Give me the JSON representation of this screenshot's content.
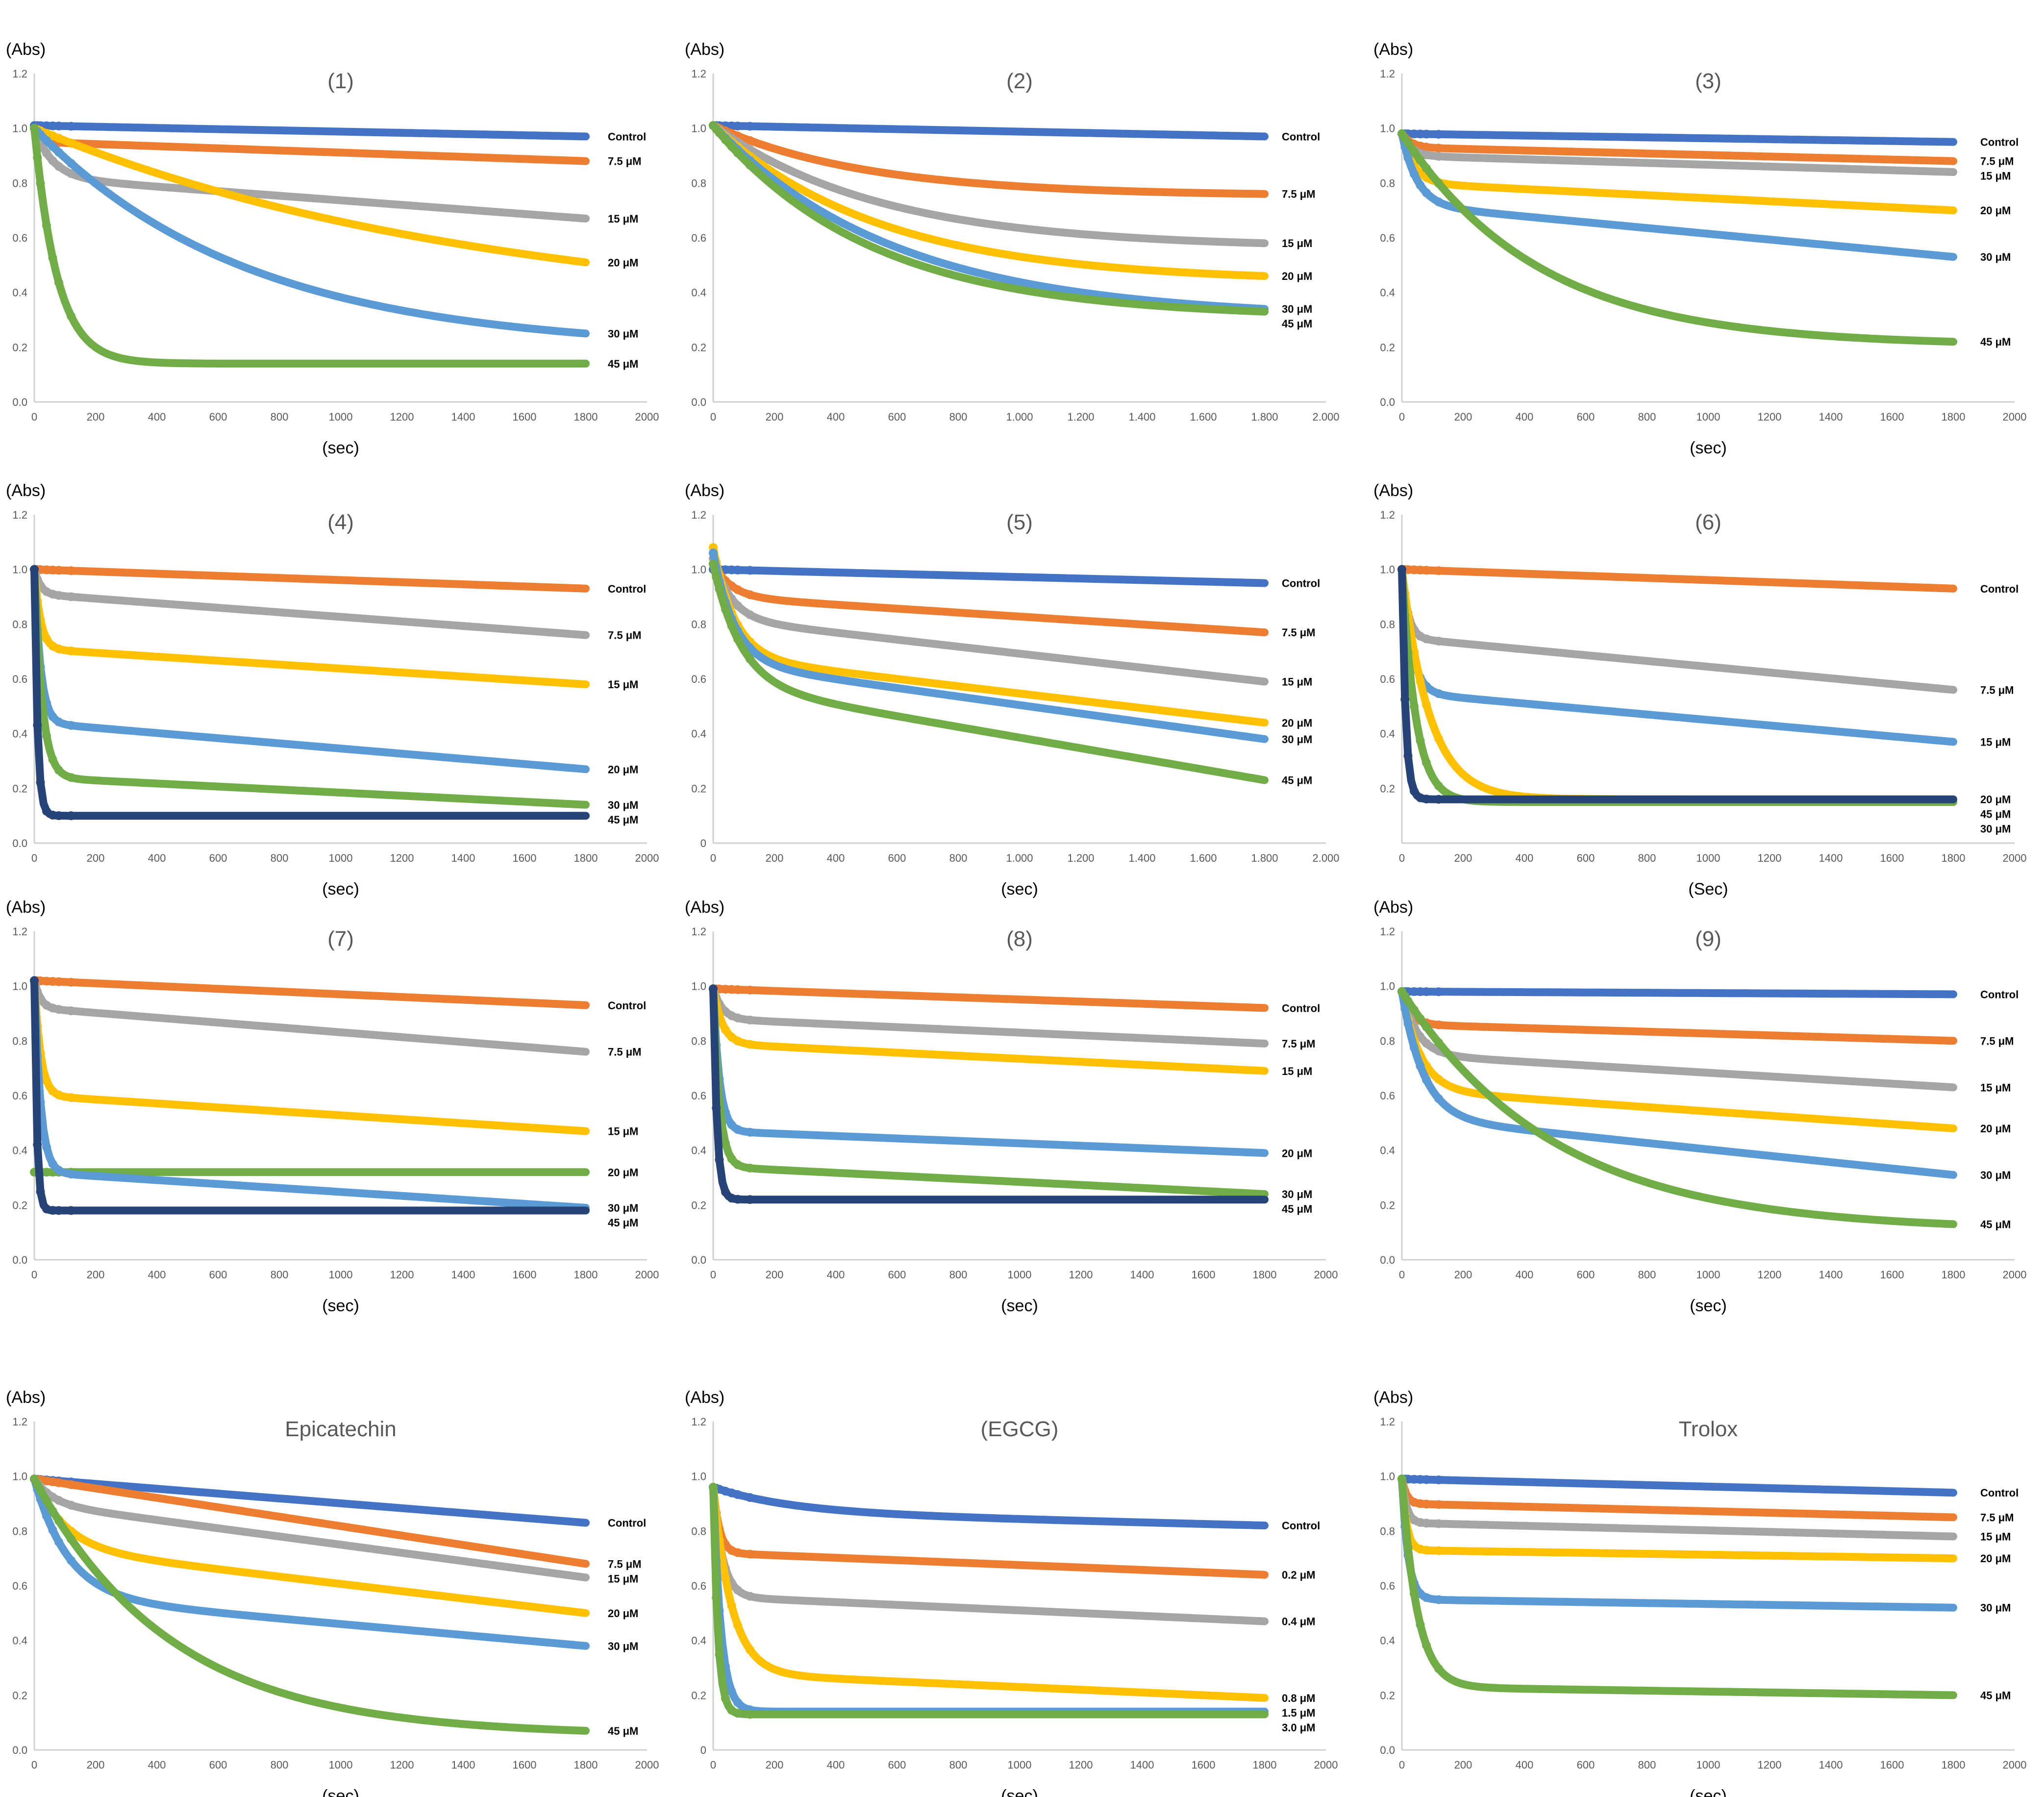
{
  "colors": {
    "blue": "#4472C4",
    "orange": "#ED7D31",
    "gray": "#A5A5A5",
    "yellow": "#FFC000",
    "lightblue": "#5B9BD5",
    "green": "#70AD47",
    "navy": "#264478"
  },
  "chart_data": [
    {
      "type": "scatter",
      "title": "(1)",
      "ylabel": "(Abs)",
      "xlabel": "(sec)",
      "xlim": [
        0,
        2000
      ],
      "ylim": [
        0,
        1.2
      ],
      "xticks": [
        "0",
        "200",
        "400",
        "600",
        "800",
        "1000",
        "1200",
        "1400",
        "1600",
        "1800",
        "2000"
      ],
      "yticks": [
        "0.0",
        "0.2",
        "0.4",
        "0.6",
        "0.8",
        "1.0",
        "1.2"
      ],
      "series": [
        {
          "name": "Control",
          "color": "blue",
          "start": 1.01,
          "end": 0.97,
          "kind": "lin"
        },
        {
          "name": "7.5 μM",
          "color": "orange",
          "start": 1.0,
          "end": 0.88,
          "kind": "drop",
          "drop": 0.95,
          "tau": 20
        },
        {
          "name": "15 μM",
          "color": "gray",
          "start": 1.0,
          "end": 0.67,
          "kind": "drop",
          "drop": 0.82,
          "tau": 60
        },
        {
          "name": "20 μM",
          "color": "yellow",
          "start": 1.0,
          "end": 0.51,
          "kind": "exp",
          "tau": 1500
        },
        {
          "name": "30 μM",
          "color": "lightblue",
          "start": 1.0,
          "end": 0.25,
          "kind": "exp",
          "tau": 700
        },
        {
          "name": "45 μM",
          "color": "green",
          "start": 1.0,
          "end": 0.14,
          "kind": "exp",
          "tau": 75
        }
      ]
    },
    {
      "type": "scatter",
      "title": "(2)",
      "ylabel": "(Abs)",
      "xlabel": "",
      "xlim": [
        0,
        2000
      ],
      "ylim": [
        0,
        1.2
      ],
      "xticks": [
        "0",
        "200",
        "400",
        "600",
        "800",
        "1.000",
        "1.200",
        "1.400",
        "1.600",
        "1.800",
        "2.000"
      ],
      "yticks": [
        "0.0",
        "0.2",
        "0.4",
        "0.6",
        "0.8",
        "1.0",
        "1.2"
      ],
      "series": [
        {
          "name": "Control",
          "color": "blue",
          "start": 1.01,
          "end": 0.97,
          "kind": "lin"
        },
        {
          "name": "7.5 μM",
          "color": "orange",
          "start": 1.01,
          "end": 0.76,
          "kind": "exp",
          "tau": 500
        },
        {
          "name": "15 μM",
          "color": "gray",
          "start": 1.01,
          "end": 0.58,
          "kind": "exp",
          "tau": 550
        },
        {
          "name": "20 μM",
          "color": "yellow",
          "start": 1.01,
          "end": 0.46,
          "kind": "exp",
          "tau": 550
        },
        {
          "name": "30 μM",
          "color": "lightblue",
          "start": 1.01,
          "end": 0.34,
          "kind": "exp",
          "tau": 600
        },
        {
          "name": "45 μM",
          "color": "green",
          "start": 1.01,
          "end": 0.33,
          "kind": "exp",
          "tau": 520
        }
      ]
    },
    {
      "type": "scatter",
      "title": "(3)",
      "ylabel": "(Abs)",
      "xlabel": "(sec)",
      "xlim": [
        0,
        2000
      ],
      "ylim": [
        0,
        1.2
      ],
      "xticks": [
        "0",
        "200",
        "400",
        "600",
        "800",
        "1000",
        "1200",
        "1400",
        "1600",
        "1800",
        "2000"
      ],
      "yticks": [
        "0.0",
        "0.2",
        "0.4",
        "0.6",
        "0.8",
        "1.0",
        "1.2"
      ],
      "series": [
        {
          "name": "Control",
          "color": "blue",
          "start": 0.98,
          "end": 0.95,
          "kind": "lin"
        },
        {
          "name": "7.5 μM",
          "color": "orange",
          "start": 0.98,
          "end": 0.88,
          "kind": "drop",
          "drop": 0.93,
          "tau": 30
        },
        {
          "name": "15 μM",
          "color": "gray",
          "start": 0.98,
          "end": 0.84,
          "kind": "drop",
          "drop": 0.9,
          "tau": 30
        },
        {
          "name": "20 μM",
          "color": "yellow",
          "start": 0.98,
          "end": 0.7,
          "kind": "drop",
          "drop": 0.8,
          "tau": 40
        },
        {
          "name": "30 μM",
          "color": "lightblue",
          "start": 0.98,
          "end": 0.53,
          "kind": "drop",
          "drop": 0.72,
          "tau": 50
        },
        {
          "name": "45 μM",
          "color": "green",
          "start": 0.98,
          "end": 0.22,
          "kind": "exp",
          "tau": 450
        }
      ]
    },
    {
      "type": "scatter",
      "title": "(4)",
      "ylabel": "(Abs)",
      "xlabel": "(sec)",
      "xlim": [
        0,
        2000
      ],
      "ylim": [
        0,
        1.2
      ],
      "xticks": [
        "0",
        "200",
        "400",
        "600",
        "800",
        "1000",
        "1200",
        "1400",
        "1600",
        "1800",
        "2000"
      ],
      "yticks": [
        "0.0",
        "0.2",
        "0.4",
        "0.6",
        "0.8",
        "1.0",
        "1.2"
      ],
      "series": [
        {
          "name": "Control",
          "color": "orange",
          "start": 1.0,
          "end": 0.93,
          "kind": "lin"
        },
        {
          "name": "7.5 μM",
          "color": "gray",
          "start": 1.0,
          "end": 0.76,
          "kind": "drop",
          "drop": 0.91,
          "tau": 20
        },
        {
          "name": "15 μM",
          "color": "yellow",
          "start": 1.0,
          "end": 0.58,
          "kind": "drop",
          "drop": 0.71,
          "tau": 20
        },
        {
          "name": "20 μM",
          "color": "lightblue",
          "start": 1.0,
          "end": 0.27,
          "kind": "drop",
          "drop": 0.44,
          "tau": 20
        },
        {
          "name": "30 μM",
          "color": "green",
          "start": 1.0,
          "end": 0.14,
          "kind": "drop",
          "drop": 0.24,
          "tau": 25
        },
        {
          "name": "45 μM",
          "color": "navy",
          "start": 1.0,
          "end": 0.1,
          "kind": "exp",
          "tau": 10
        }
      ]
    },
    {
      "type": "scatter",
      "title": "(5)",
      "ylabel": "(Abs)",
      "xlabel": "(sec)",
      "xlim": [
        0,
        2000
      ],
      "ylim": [
        0,
        1.2
      ],
      "xticks": [
        "0",
        "200",
        "400",
        "600",
        "800",
        "1.000",
        "1.200",
        "1.400",
        "1.600",
        "1.800",
        "2.000"
      ],
      "yticks": [
        "0",
        "0.2",
        "0.4",
        "0.6",
        "0.8",
        "1.0",
        "1.2"
      ],
      "series": [
        {
          "name": "Control",
          "color": "blue",
          "start": 1.0,
          "end": 0.95,
          "kind": "lin"
        },
        {
          "name": "7.5 μM",
          "color": "orange",
          "start": 1.02,
          "end": 0.77,
          "kind": "drop",
          "drop": 0.9,
          "tau": 60
        },
        {
          "name": "15 μM",
          "color": "gray",
          "start": 1.04,
          "end": 0.59,
          "kind": "drop",
          "drop": 0.82,
          "tau": 60
        },
        {
          "name": "20 μM",
          "color": "yellow",
          "start": 1.08,
          "end": 0.44,
          "kind": "drop",
          "drop": 0.68,
          "tau": 70
        },
        {
          "name": "30 μM",
          "color": "lightblue",
          "start": 1.06,
          "end": 0.38,
          "kind": "drop",
          "drop": 0.66,
          "tau": 70
        },
        {
          "name": "45 μM",
          "color": "green",
          "start": 1.02,
          "end": 0.23,
          "kind": "drop",
          "drop": 0.58,
          "tau": 90
        }
      ]
    },
    {
      "type": "scatter",
      "title": "(6)",
      "ylabel": "(Abs)",
      "xlabel": "(Sec)",
      "xlim": [
        0,
        2000
      ],
      "ylim": [
        0,
        1.2
      ],
      "xticks": [
        "0",
        "200",
        "400",
        "600",
        "800",
        "1000",
        "1200",
        "1400",
        "1600",
        "1800",
        "2000"
      ],
      "yticks": [
        "0.2",
        "0.4",
        "0.6",
        "0.8",
        "1.0",
        "1.2"
      ],
      "series": [
        {
          "name": "Control",
          "color": "orange",
          "start": 1.0,
          "end": 0.93,
          "kind": "lin"
        },
        {
          "name": "7.5 μM",
          "color": "gray",
          "start": 1.0,
          "end": 0.56,
          "kind": "drop",
          "drop": 0.75,
          "tau": 20
        },
        {
          "name": "15 μM",
          "color": "lightblue",
          "start": 1.0,
          "end": 0.37,
          "kind": "drop",
          "drop": 0.55,
          "tau": 30
        },
        {
          "name": "20 μM",
          "color": "yellow",
          "start": 1.0,
          "end": 0.16,
          "kind": "exp",
          "tau": 90
        },
        {
          "name": "30 μM",
          "color": "green",
          "start": 1.0,
          "end": 0.15,
          "kind": "exp",
          "tau": 45
        },
        {
          "name": "45 μM",
          "color": "navy",
          "start": 1.0,
          "end": 0.16,
          "kind": "exp",
          "tau": 12
        }
      ]
    },
    {
      "type": "scatter",
      "title": "(7)",
      "ylabel": "(Abs)",
      "xlabel": "(sec)",
      "xlim": [
        0,
        2000
      ],
      "ylim": [
        0,
        1.2
      ],
      "xticks": [
        "0",
        "200",
        "400",
        "600",
        "800",
        "1000",
        "1200",
        "1400",
        "1600",
        "1800",
        "2000"
      ],
      "yticks": [
        "0.0",
        "0.2",
        "0.4",
        "0.6",
        "0.8",
        "1.0",
        "1.2"
      ],
      "series": [
        {
          "name": "Control",
          "color": "orange",
          "start": 1.02,
          "end": 0.93,
          "kind": "lin"
        },
        {
          "name": "7.5 μM",
          "color": "gray",
          "start": 1.02,
          "end": 0.76,
          "kind": "drop",
          "drop": 0.92,
          "tau": 20
        },
        {
          "name": "15 μM",
          "color": "yellow",
          "start": 1.02,
          "end": 0.47,
          "kind": "drop",
          "drop": 0.6,
          "tau": 20
        },
        {
          "name": "20 μM",
          "color": "green",
          "start": 0.32,
          "end": 0.32,
          "kind": "lin"
        },
        {
          "name": "30 μM",
          "color": "lightblue",
          "start": 1.02,
          "end": 0.19,
          "kind": "drop",
          "drop": 0.32,
          "tau": 20
        },
        {
          "name": "45 μM",
          "color": "navy",
          "start": 1.02,
          "end": 0.18,
          "kind": "exp",
          "tau": 8
        }
      ]
    },
    {
      "type": "scatter",
      "title": "(8)",
      "ylabel": "(Abs)",
      "xlabel": "(sec)",
      "xlim": [
        0,
        2000
      ],
      "ylim": [
        0,
        1.2
      ],
      "xticks": [
        "0",
        "200",
        "400",
        "600",
        "800",
        "1000",
        "1200",
        "1400",
        "1600",
        "1800",
        "2000"
      ],
      "yticks": [
        "0.0",
        "0.2",
        "0.4",
        "0.6",
        "0.8",
        "1.0",
        "1.2"
      ],
      "series": [
        {
          "name": "Control",
          "color": "orange",
          "start": 0.99,
          "end": 0.92,
          "kind": "lin"
        },
        {
          "name": "7.5 μM",
          "color": "gray",
          "start": 0.99,
          "end": 0.79,
          "kind": "drop",
          "drop": 0.88,
          "tau": 30
        },
        {
          "name": "15 μM",
          "color": "yellow",
          "start": 0.99,
          "end": 0.69,
          "kind": "drop",
          "drop": 0.79,
          "tau": 30
        },
        {
          "name": "20 μM",
          "color": "lightblue",
          "start": 0.99,
          "end": 0.39,
          "kind": "drop",
          "drop": 0.47,
          "tau": 20
        },
        {
          "name": "30 μM",
          "color": "green",
          "start": 0.99,
          "end": 0.24,
          "kind": "drop",
          "drop": 0.34,
          "tau": 20
        },
        {
          "name": "45 μM",
          "color": "navy",
          "start": 0.99,
          "end": 0.22,
          "kind": "exp",
          "tau": 12
        }
      ]
    },
    {
      "type": "scatter",
      "title": "(9)",
      "ylabel": "(Abs)",
      "xlabel": "(sec)",
      "xlim": [
        0,
        2000
      ],
      "ylim": [
        0,
        1.2
      ],
      "xticks": [
        "0",
        "200",
        "400",
        "600",
        "800",
        "1000",
        "1200",
        "1400",
        "1600",
        "1800",
        "2000"
      ],
      "yticks": [
        "0.0",
        "0.2",
        "0.4",
        "0.6",
        "0.8",
        "1.0",
        "1.2"
      ],
      "series": [
        {
          "name": "Control",
          "color": "blue",
          "start": 0.98,
          "end": 0.97,
          "kind": "lin"
        },
        {
          "name": "7.5 μM",
          "color": "orange",
          "start": 0.98,
          "end": 0.8,
          "kind": "drop",
          "drop": 0.86,
          "tau": 30
        },
        {
          "name": "15 μM",
          "color": "gray",
          "start": 0.98,
          "end": 0.63,
          "kind": "drop",
          "drop": 0.75,
          "tau": 50
        },
        {
          "name": "20 μM",
          "color": "yellow",
          "start": 0.98,
          "end": 0.48,
          "kind": "drop",
          "drop": 0.62,
          "tau": 60
        },
        {
          "name": "30 μM",
          "color": "lightblue",
          "start": 0.98,
          "end": 0.31,
          "kind": "drop",
          "drop": 0.52,
          "tau": 70
        },
        {
          "name": "45 μM",
          "color": "green",
          "start": 0.98,
          "end": 0.13,
          "kind": "exp",
          "tau": 500
        }
      ]
    },
    {
      "type": "scatter",
      "title": "Epicatechin",
      "ylabel": "(Abs)",
      "xlabel": "(sec)",
      "xlim": [
        0,
        2000
      ],
      "ylim": [
        0,
        1.2
      ],
      "xticks": [
        "0",
        "200",
        "400",
        "600",
        "800",
        "1000",
        "1200",
        "1400",
        "1600",
        "1800",
        "2000"
      ],
      "yticks": [
        "0.0",
        "0.2",
        "0.4",
        "0.6",
        "0.8",
        "1.0",
        "1.2"
      ],
      "series": [
        {
          "name": "Control",
          "color": "blue",
          "start": 0.99,
          "end": 0.83,
          "kind": "lin"
        },
        {
          "name": "7.5 μM",
          "color": "orange",
          "start": 0.99,
          "end": 0.68,
          "kind": "lin"
        },
        {
          "name": "15 μM",
          "color": "gray",
          "start": 0.99,
          "end": 0.63,
          "kind": "drop",
          "drop": 0.9,
          "tau": 60
        },
        {
          "name": "20 μM",
          "color": "yellow",
          "start": 0.99,
          "end": 0.5,
          "kind": "drop",
          "drop": 0.74,
          "tau": 100
        },
        {
          "name": "30 μM",
          "color": "lightblue",
          "start": 0.99,
          "end": 0.38,
          "kind": "drop",
          "drop": 0.56,
          "tau": 110
        },
        {
          "name": "45 μM",
          "color": "green",
          "start": 0.99,
          "end": 0.07,
          "kind": "exp",
          "tau": 450
        }
      ]
    },
    {
      "type": "scatter",
      "title": "(EGCG)",
      "ylabel": "(Abs)",
      "xlabel": "(sec)",
      "xlim": [
        0,
        2000
      ],
      "ylim": [
        0,
        1.2
      ],
      "xticks": [
        "0",
        "200",
        "400",
        "600",
        "800",
        "1000",
        "1200",
        "1400",
        "1600",
        "1800",
        "2000"
      ],
      "yticks": [
        "0",
        "0.2",
        "0.4",
        "0.6",
        "0.8",
        "1.0",
        "1.2"
      ],
      "series": [
        {
          "name": "Control",
          "color": "blue",
          "start": 0.96,
          "end": 0.82,
          "kind": "drop",
          "drop": 0.87,
          "tau": 250
        },
        {
          "name": "0.2 μM",
          "color": "orange",
          "start": 0.96,
          "end": 0.64,
          "kind": "drop",
          "drop": 0.72,
          "tau": 20
        },
        {
          "name": "0.4 μM",
          "color": "gray",
          "start": 0.96,
          "end": 0.47,
          "kind": "drop",
          "drop": 0.56,
          "tau": 30
        },
        {
          "name": "0.8 μM",
          "color": "yellow",
          "start": 0.96,
          "end": 0.19,
          "kind": "drop",
          "drop": 0.28,
          "tau": 60
        },
        {
          "name": "1.5 μM",
          "color": "lightblue",
          "start": 0.96,
          "end": 0.14,
          "kind": "exp",
          "tau": 25
        },
        {
          "name": "3.0 μM",
          "color": "green",
          "start": 0.96,
          "end": 0.13,
          "kind": "exp",
          "tau": 15
        }
      ]
    },
    {
      "type": "scatter",
      "title": "Trolox",
      "ylabel": "(Abs)",
      "xlabel": "(sec)",
      "xlim": [
        0,
        2000
      ],
      "ylim": [
        0,
        1.2
      ],
      "xticks": [
        "0",
        "200",
        "400",
        "600",
        "800",
        "1000",
        "1200",
        "1400",
        "1600",
        "1800",
        "2000"
      ],
      "yticks": [
        "0.0",
        "0.2",
        "0.4",
        "0.6",
        "0.8",
        "1.0",
        "1.2"
      ],
      "series": [
        {
          "name": "Control",
          "color": "blue",
          "start": 0.99,
          "end": 0.94,
          "kind": "lin"
        },
        {
          "name": "7.5 μM",
          "color": "orange",
          "start": 0.99,
          "end": 0.85,
          "kind": "drop",
          "drop": 0.9,
          "tau": 15
        },
        {
          "name": "15 μM",
          "color": "gray",
          "start": 0.99,
          "end": 0.78,
          "kind": "drop",
          "drop": 0.83,
          "tau": 15
        },
        {
          "name": "20 μM",
          "color": "yellow",
          "start": 0.99,
          "end": 0.7,
          "kind": "drop",
          "drop": 0.73,
          "tau": 15
        },
        {
          "name": "30 μM",
          "color": "lightblue",
          "start": 0.99,
          "end": 0.52,
          "kind": "drop",
          "drop": 0.55,
          "tau": 20
        },
        {
          "name": "45 μM",
          "color": "green",
          "start": 0.99,
          "end": 0.2,
          "kind": "drop",
          "drop": 0.23,
          "tau": 50
        }
      ]
    }
  ]
}
